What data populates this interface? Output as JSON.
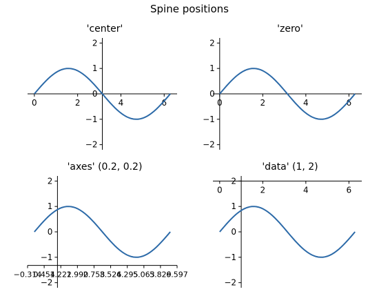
{
  "figure": {
    "suptitle": "Spine positions",
    "line_color": "#2c6aa8"
  },
  "chart_data": [
    {
      "type": "line",
      "title": "'center'",
      "series": [
        {
          "function": "sin(x)",
          "x_range": [
            0,
            6.283
          ],
          "samples": 60
        }
      ],
      "xlim": [
        -0.314,
        6.597
      ],
      "ylim": [
        -2.2,
        2.2
      ],
      "xticks": [
        0,
        2,
        4,
        6
      ],
      "xtick_labels": [
        "0",
        "2",
        "4",
        "6"
      ],
      "yticks": [
        -2,
        -1,
        0,
        1,
        2
      ],
      "ytick_labels": [
        "−2",
        "−1",
        "0",
        "1",
        "2"
      ],
      "spine_position": "center"
    },
    {
      "type": "line",
      "title": "'zero'",
      "series": [
        {
          "function": "sin(x)",
          "x_range": [
            0,
            6.283
          ],
          "samples": 60
        }
      ],
      "xlim": [
        -0.314,
        6.597
      ],
      "ylim": [
        -2.2,
        2.2
      ],
      "xticks": [
        0,
        2,
        4,
        6
      ],
      "xtick_labels": [
        "0",
        "2",
        "4",
        "6"
      ],
      "yticks": [
        -2,
        -1,
        0,
        1,
        2
      ],
      "ytick_labels": [
        "−2",
        "−1",
        "0",
        "1",
        "2"
      ],
      "spine_position": "zero"
    },
    {
      "type": "line",
      "title": "'axes' (0.2, 0.2)",
      "series": [
        {
          "function": "sin(x)",
          "x_range": [
            0,
            6.283
          ],
          "samples": 60
        }
      ],
      "xlim": [
        -0.314,
        6.597
      ],
      "ylim": [
        -2.2,
        2.2
      ],
      "xticks": [
        -0.314,
        0.454,
        1.222,
        1.99,
        2.758,
        3.526,
        4.295,
        5.063,
        5.829,
        6.597
      ],
      "xtick_labels": [
        "−0.314",
        "0.454",
        "1.222",
        "1.990",
        "2.758",
        "3.526",
        "4.295",
        "5.063",
        "5.829",
        "6.597"
      ],
      "yticks": [
        -2,
        -1,
        0,
        1,
        2
      ],
      "ytick_labels": [
        "−2",
        "−1",
        "0",
        "1",
        "2"
      ],
      "spine_position": "axes (0.2, 0.2)"
    },
    {
      "type": "line",
      "title": "'data' (1, 2)",
      "series": [
        {
          "function": "sin(x)",
          "x_range": [
            0,
            6.283
          ],
          "samples": 60
        }
      ],
      "xlim": [
        -0.314,
        6.597
      ],
      "ylim": [
        -2.2,
        2.2
      ],
      "xticks": [
        0,
        2,
        4,
        6
      ],
      "xtick_labels": [
        "0",
        "2",
        "4",
        "6"
      ],
      "yticks": [
        -2,
        -1,
        0,
        1,
        2
      ],
      "ytick_labels": [
        "−2",
        "−1",
        "0",
        "1",
        "2"
      ],
      "spine_position": "data (1, 2)"
    }
  ]
}
